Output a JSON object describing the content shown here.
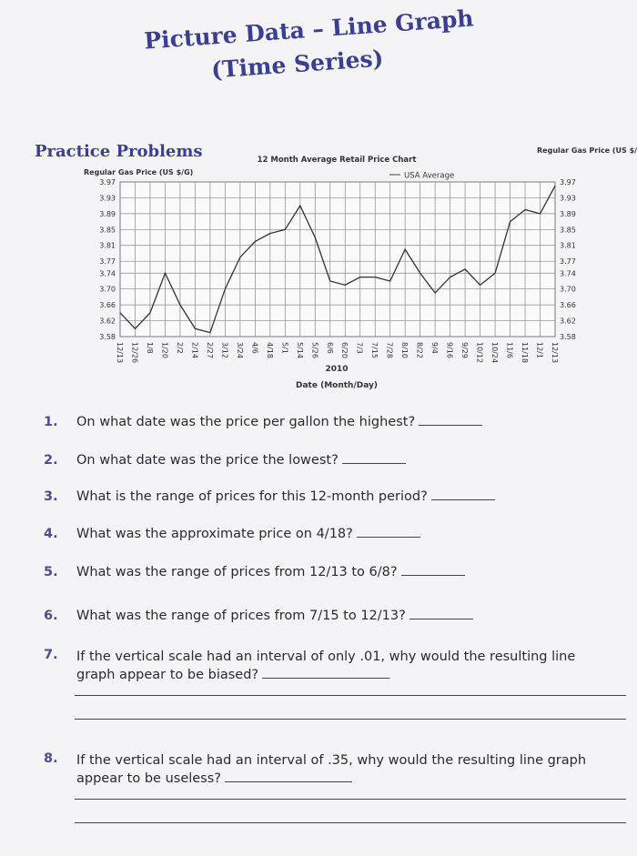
{
  "header": {
    "title": "Picture Data – Line Graph",
    "subtitle": "(Time Series)",
    "section": "Practice Problems"
  },
  "chart_data": {
    "type": "line",
    "title": "12 Month Average Retail Price Chart",
    "y_label": "Regular Gas Price (US $/G)",
    "x_year": "2010",
    "x_label": "Date (Month/Day)",
    "categories": [
      "12/13",
      "12/26",
      "1/8",
      "1/20",
      "2/2",
      "2/14",
      "2/27",
      "3/12",
      "3/24",
      "4/6",
      "4/18",
      "5/1",
      "5/14",
      "5/26",
      "6/6",
      "6/20",
      "7/3",
      "7/15",
      "7/28",
      "8/10",
      "8/22",
      "9/4",
      "9/16",
      "9/29",
      "10/12",
      "10/24",
      "11/6",
      "11/18",
      "12/1",
      "12/13"
    ],
    "series": [
      {
        "name": "USA Average",
        "color": "#333333",
        "values": [
          3.64,
          3.6,
          3.64,
          3.74,
          3.66,
          3.6,
          3.59,
          3.7,
          3.78,
          3.82,
          3.84,
          3.85,
          3.91,
          3.83,
          3.72,
          3.71,
          3.73,
          3.73,
          3.72,
          3.8,
          3.74,
          3.69,
          3.73,
          3.75,
          3.71,
          3.74,
          3.87,
          3.9,
          3.89,
          3.96
        ]
      }
    ],
    "ylim": [
      3.58,
      3.97
    ],
    "yticks": [
      3.97,
      3.93,
      3.89,
      3.85,
      3.81,
      3.77,
      3.74,
      {
        "value": 3.7,
        "label": "3.70"
      },
      3.66,
      3.62,
      3.58
    ],
    "grid": true
  },
  "questions": [
    {
      "number": "1.",
      "text": "On what date was the price per gallon the highest?"
    },
    {
      "number": "2.",
      "text": "On what date was the price the lowest?"
    },
    {
      "number": "3.",
      "text": "What is the range of prices for this 12-month period?"
    },
    {
      "number": "4.",
      "text": "What was the approximate price on 4/18?"
    },
    {
      "number": "5.",
      "text": "What was the range of prices from 12/13 to 6/8?"
    },
    {
      "number": "6.",
      "text": "What was the range of prices from 7/15 to 12/13?"
    },
    {
      "number": "7.",
      "text": "If the vertical scale had an interval of only .01, why would the resulting line graph appear to be biased?"
    },
    {
      "number": "8.",
      "text": "If the vertical scale had an interval of .35, why would the resulting line graph appear to be useless?"
    }
  ]
}
